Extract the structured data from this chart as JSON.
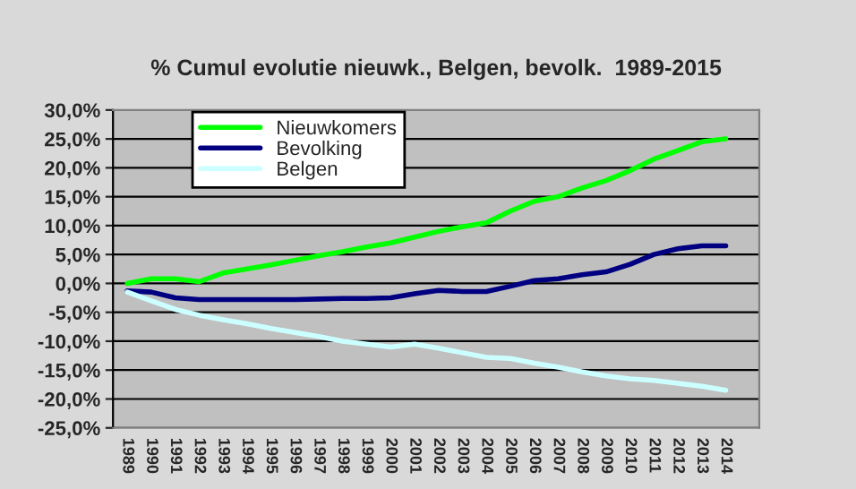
{
  "chart_data": {
    "type": "line",
    "title": "% Cumul evolutie nieuwk., Belgen, bevolk.  1989-2015",
    "categories": [
      "1989",
      "1990",
      "1991",
      "1992",
      "1993",
      "1994",
      "1995",
      "1996",
      "1997",
      "1998",
      "1999",
      "2000",
      "2001",
      "2002",
      "2003",
      "2004",
      "2005",
      "2006",
      "2007",
      "2008",
      "2009",
      "2010",
      "2011",
      "2012",
      "2013",
      "2014"
    ],
    "series": [
      {
        "name": "Nieuwkomers",
        "color": "#00ff00",
        "values": [
          0,
          0.8,
          0.8,
          0.3,
          1.8,
          2.5,
          3.2,
          4.0,
          4.8,
          5.5,
          6.3,
          7.0,
          8.0,
          9.0,
          9.8,
          10.5,
          12.5,
          14.2,
          15.0,
          16.5,
          17.8,
          19.5,
          21.5,
          23.0,
          24.5,
          25.0
        ]
      },
      {
        "name": "Bevolking",
        "color": "#000080",
        "values": [
          -1.3,
          -1.5,
          -2.5,
          -2.8,
          -2.8,
          -2.8,
          -2.8,
          -2.8,
          -2.7,
          -2.6,
          -2.6,
          -2.5,
          -1.8,
          -1.2,
          -1.4,
          -1.4,
          -0.5,
          0.5,
          0.8,
          1.5,
          2.0,
          3.3,
          5.0,
          6.0,
          6.5,
          6.5
        ]
      },
      {
        "name": "Belgen",
        "color": "#ccffff",
        "values": [
          -1.5,
          -3.0,
          -4.5,
          -5.5,
          -6.3,
          -7.0,
          -7.8,
          -8.5,
          -9.2,
          -10.0,
          -10.5,
          -11.0,
          -10.5,
          -11.2,
          -12.0,
          -12.8,
          -13.0,
          -13.8,
          -14.5,
          -15.3,
          -16.0,
          -16.5,
          -16.8,
          -17.3,
          -17.8,
          -18.5
        ]
      }
    ],
    "ylim": [
      -25,
      30
    ],
    "yticks": [
      {
        "value": -25,
        "label": "-25,0%"
      },
      {
        "value": -20,
        "label": "-20,0%"
      },
      {
        "value": -15,
        "label": "-15,0%"
      },
      {
        "value": -10,
        "label": "-10,0%"
      },
      {
        "value": -5,
        "label": "-5,0%"
      },
      {
        "value": 0,
        "label": "0,0%"
      },
      {
        "value": 5,
        "label": "5,0%"
      },
      {
        "value": 10,
        "label": "10,0%"
      },
      {
        "value": 15,
        "label": "15,0%"
      },
      {
        "value": 20,
        "label": "20,0%"
      },
      {
        "value": 25,
        "label": "25,0%"
      },
      {
        "value": 30,
        "label": "30,0%"
      }
    ],
    "grid": "y",
    "legend": "top left",
    "marker": "none",
    "line_style": "solid"
  }
}
